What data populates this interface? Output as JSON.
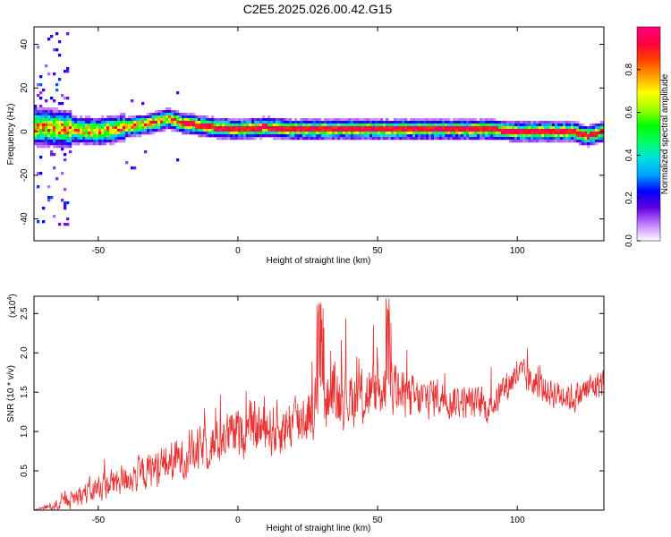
{
  "title": "C2E5.2025.026.00.42.G15",
  "chart_data": [
    {
      "type": "heatmap",
      "title": "C2E5.2025.026.00.42.G15",
      "xlabel": "Height of straight line (km)",
      "ylabel": "Frequency (Hz)",
      "xlim": [
        -73,
        131
      ],
      "ylim": [
        -50,
        48
      ],
      "xticks": [
        -50,
        0,
        50,
        100
      ],
      "yticks": [
        -40,
        -20,
        0,
        20,
        40
      ],
      "ridge": {
        "x": [
          -70,
          -60,
          -50,
          -40,
          -30,
          -25,
          -20,
          -10,
          0,
          10,
          20,
          30,
          40,
          50,
          60,
          70,
          80,
          90,
          100,
          110,
          120,
          125,
          131
        ],
        "freq": [
          2,
          1,
          0,
          2,
          4,
          6,
          4,
          2,
          1,
          2,
          1,
          1,
          1,
          1,
          1,
          1,
          1,
          1,
          0,
          0,
          0,
          -2,
          0
        ]
      },
      "colorbar": {
        "label": "Normalized spectral amplitude",
        "range": [
          0,
          1
        ],
        "ticks": [
          0.0,
          0.2,
          0.4,
          0.6,
          0.8
        ],
        "tick_labels": [
          "0.0",
          "0.2",
          "0.4",
          "0.6",
          "0.8"
        ],
        "colors": [
          "#ffffff",
          "#c080ff",
          "#6000e0",
          "#0000ff",
          "#00a0ff",
          "#00e0e0",
          "#00ff60",
          "#00ff00",
          "#a0ff00",
          "#ffff00",
          "#ffa000",
          "#ff4000",
          "#ff0040",
          "#ff0080"
        ]
      }
    },
    {
      "type": "line",
      "xlabel": "Height of straight line (km)",
      "ylabel": "SNR (10 * v/v)",
      "scale_label": "(x10",
      "scale_exp": "4",
      "scale_close": ")",
      "xlim": [
        -73,
        131
      ],
      "ylim": [
        0,
        2.72
      ],
      "xticks": [
        -50,
        0,
        50,
        100
      ],
      "yticks": [
        0.5,
        1.0,
        1.5,
        2.0,
        2.5
      ],
      "ytick_labels": [
        "0.5",
        "1.0",
        "1.5",
        "2.0",
        "2.5"
      ],
      "color": "#e83030",
      "series": [
        {
          "x": [
            -73,
            -65,
            -60,
            -55,
            -50,
            -45,
            -40,
            -35,
            -30,
            -25,
            -20,
            -15,
            -10,
            -5,
            0,
            5,
            10,
            15,
            20,
            25,
            30,
            35,
            40,
            45,
            50,
            55,
            60,
            65,
            70,
            75,
            80,
            85,
            90,
            95,
            100,
            105,
            110,
            115,
            120,
            125,
            131
          ],
          "values": [
            0.0,
            0.06,
            0.12,
            0.2,
            0.25,
            0.32,
            0.38,
            0.42,
            0.5,
            0.55,
            0.62,
            0.7,
            0.78,
            0.88,
            0.95,
            0.98,
            1.0,
            0.98,
            1.08,
            1.18,
            1.35,
            1.42,
            1.38,
            1.4,
            1.45,
            1.5,
            1.38,
            1.36,
            1.42,
            1.38,
            1.35,
            1.32,
            1.28,
            1.5,
            1.72,
            1.6,
            1.5,
            1.45,
            1.4,
            1.5,
            1.62
          ],
          "noise": [
            0.0,
            0.1,
            0.15,
            0.22,
            0.25,
            0.28,
            0.3,
            0.32,
            0.35,
            0.38,
            0.4,
            0.42,
            0.42,
            0.45,
            0.45,
            0.48,
            0.5,
            0.5,
            0.52,
            0.55,
            0.58,
            0.58,
            0.55,
            0.55,
            0.55,
            0.55,
            0.45,
            0.4,
            0.38,
            0.35,
            0.32,
            0.3,
            0.3,
            0.3,
            0.3,
            0.3,
            0.28,
            0.28,
            0.28,
            0.28,
            0.28
          ]
        }
      ]
    }
  ]
}
